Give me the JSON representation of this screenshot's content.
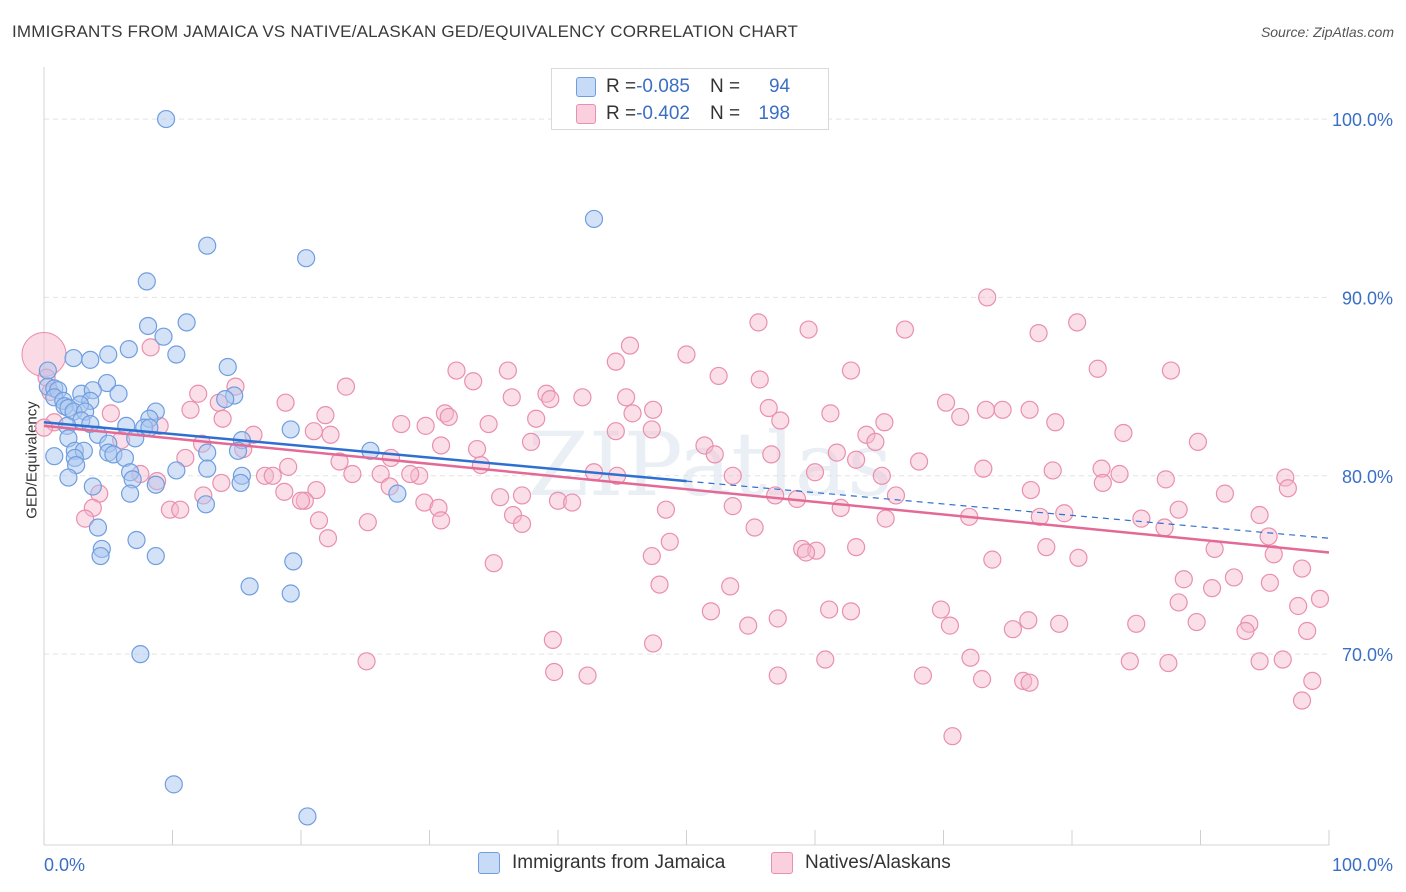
{
  "header": {
    "title": "IMMIGRANTS FROM JAMAICA VS NATIVE/ALASKAN GED/EQUIVALENCY CORRELATION CHART",
    "source": "Source: ZipAtlas.com"
  },
  "stats": [
    {
      "r_label": "R = ",
      "r_value": "-0.085",
      "n_label": "N = ",
      "n_value": "94"
    },
    {
      "r_label": "R = ",
      "r_value": "-0.402",
      "n_label": "N = ",
      "n_value": "198"
    }
  ],
  "colors": {
    "blue_fill": "#a9c6f0",
    "blue_stroke": "#6f9ee0",
    "blue_line": "#2f6fd0",
    "pink_fill": "#f5b8cc",
    "pink_stroke": "#ea8fae",
    "pink_line": "#e36a96",
    "value_text": "#3b6fc5",
    "grid": "#e3e3e3"
  },
  "chart_data": {
    "type": "scatter",
    "title": "IMMIGRANTS FROM JAMAICA VS NATIVE/ALASKAN GED/EQUIVALENCY CORRELATION CHART",
    "ylabel": "GED/Equivalency",
    "xlabel": "",
    "xlim": [
      0,
      100
    ],
    "ylim": [
      59.3,
      103.2
    ],
    "x_tick_labels": [
      "0.0%",
      "100.0%"
    ],
    "y_ticks": [
      70,
      80,
      90,
      100
    ],
    "y_tick_labels": [
      "70.0%",
      "80.0%",
      "90.0%",
      "100.0%"
    ],
    "grid": true,
    "legend_position": "bottom",
    "watermark": "ZIPatlas",
    "series": [
      {
        "name": "Immigrants from Jamaica",
        "color": "#a9c6f0",
        "trend": {
          "x": [
            0,
            50
          ],
          "y": [
            83.0,
            79.7
          ],
          "dashed_extension_to": [
            100,
            76.5
          ]
        },
        "points": [
          [
            9.5,
            100.0
          ],
          [
            42.8,
            94.4
          ],
          [
            12.7,
            92.9
          ],
          [
            20.4,
            92.2
          ],
          [
            8.0,
            90.9
          ],
          [
            11.1,
            88.6
          ],
          [
            8.1,
            88.4
          ],
          [
            9.3,
            87.8
          ],
          [
            6.6,
            87.1
          ],
          [
            10.3,
            86.8
          ],
          [
            2.3,
            86.6
          ],
          [
            3.6,
            86.5
          ],
          [
            5.0,
            86.8
          ],
          [
            14.3,
            86.1
          ],
          [
            0.3,
            85.9
          ],
          [
            4.9,
            85.2
          ],
          [
            0.3,
            85.0
          ],
          [
            0.8,
            84.9
          ],
          [
            1.1,
            84.8
          ],
          [
            2.9,
            84.6
          ],
          [
            3.8,
            84.8
          ],
          [
            5.8,
            84.6
          ],
          [
            14.8,
            84.5
          ],
          [
            0.8,
            84.4
          ],
          [
            1.5,
            84.2
          ],
          [
            3.6,
            84.2
          ],
          [
            14.1,
            84.3
          ],
          [
            2.8,
            84.0
          ],
          [
            1.6,
            83.9
          ],
          [
            1.9,
            83.8
          ],
          [
            2.3,
            83.6
          ],
          [
            3.2,
            83.6
          ],
          [
            8.7,
            83.6
          ],
          [
            2.9,
            83.1
          ],
          [
            8.2,
            83.2
          ],
          [
            1.8,
            82.8
          ],
          [
            3.6,
            82.9
          ],
          [
            6.4,
            82.8
          ],
          [
            7.8,
            82.7
          ],
          [
            8.2,
            82.7
          ],
          [
            19.2,
            82.6
          ],
          [
            4.2,
            82.3
          ],
          [
            7.1,
            82.1
          ],
          [
            15.4,
            82.0
          ],
          [
            1.9,
            82.1
          ],
          [
            5.0,
            81.8
          ],
          [
            2.4,
            81.4
          ],
          [
            3.1,
            81.4
          ],
          [
            5.0,
            81.3
          ],
          [
            5.4,
            81.2
          ],
          [
            12.7,
            81.3
          ],
          [
            15.1,
            81.4
          ],
          [
            25.4,
            81.4
          ],
          [
            0.8,
            81.1
          ],
          [
            2.4,
            81.0
          ],
          [
            6.3,
            81.0
          ],
          [
            2.5,
            80.6
          ],
          [
            10.3,
            80.3
          ],
          [
            12.7,
            80.4
          ],
          [
            6.7,
            80.2
          ],
          [
            15.4,
            80.0
          ],
          [
            1.9,
            79.9
          ],
          [
            6.9,
            79.8
          ],
          [
            15.3,
            79.6
          ],
          [
            8.7,
            79.5
          ],
          [
            3.8,
            79.4
          ],
          [
            6.7,
            79.0
          ],
          [
            27.5,
            79.0
          ],
          [
            12.6,
            78.4
          ],
          [
            4.2,
            77.1
          ],
          [
            7.2,
            76.4
          ],
          [
            4.5,
            75.9
          ],
          [
            4.4,
            75.5
          ],
          [
            8.7,
            75.5
          ],
          [
            19.4,
            75.2
          ],
          [
            16.0,
            73.8
          ],
          [
            19.2,
            73.4
          ],
          [
            7.5,
            70.0
          ],
          [
            10.1,
            62.7
          ],
          [
            20.5,
            60.9
          ]
        ]
      },
      {
        "name": "Natives/Alaskans",
        "color": "#f5b8cc",
        "trend": {
          "x": [
            0,
            100
          ],
          "y": [
            82.8,
            75.7
          ]
        },
        "points": [
          [
            73.4,
            90.0
          ],
          [
            55.6,
            88.6
          ],
          [
            80.4,
            88.6
          ],
          [
            59.5,
            88.2
          ],
          [
            67.0,
            88.2
          ],
          [
            77.4,
            88.0
          ],
          [
            45.6,
            87.3
          ],
          [
            8.3,
            87.2
          ],
          [
            50.0,
            86.8
          ],
          [
            44.5,
            86.4
          ],
          [
            32.1,
            85.9
          ],
          [
            36.1,
            85.9
          ],
          [
            62.8,
            85.9
          ],
          [
            82.0,
            86.0
          ],
          [
            87.7,
            85.9
          ],
          [
            52.5,
            85.6
          ],
          [
            55.7,
            85.4
          ],
          [
            14.9,
            85.0
          ],
          [
            33.4,
            85.3
          ],
          [
            0.8,
            83.0
          ],
          [
            23.5,
            85.0
          ],
          [
            39.1,
            84.6
          ],
          [
            41.9,
            84.4
          ],
          [
            36.4,
            84.4
          ],
          [
            45.3,
            84.4
          ],
          [
            39.4,
            84.3
          ],
          [
            13.6,
            84.1
          ],
          [
            18.8,
            84.1
          ],
          [
            11.4,
            83.7
          ],
          [
            31.2,
            83.5
          ],
          [
            38.3,
            83.2
          ],
          [
            47.4,
            83.7
          ],
          [
            45.8,
            83.5
          ],
          [
            56.4,
            83.8
          ],
          [
            61.2,
            83.5
          ],
          [
            76.7,
            83.7
          ],
          [
            70.2,
            84.1
          ],
          [
            73.3,
            83.7
          ],
          [
            74.6,
            83.7
          ],
          [
            21.9,
            83.4
          ],
          [
            13.9,
            83.2
          ],
          [
            31.5,
            83.3
          ],
          [
            27.8,
            82.9
          ],
          [
            34.6,
            82.9
          ],
          [
            29.7,
            82.8
          ],
          [
            57.3,
            83.1
          ],
          [
            65.4,
            83.0
          ],
          [
            71.3,
            83.3
          ],
          [
            78.7,
            83.0
          ],
          [
            84.0,
            82.4
          ],
          [
            64.0,
            82.3
          ],
          [
            47.3,
            82.6
          ],
          [
            44.5,
            82.5
          ],
          [
            16.3,
            82.3
          ],
          [
            22.3,
            82.3
          ],
          [
            12.3,
            81.8
          ],
          [
            37.9,
            81.9
          ],
          [
            51.4,
            81.7
          ],
          [
            64.7,
            81.9
          ],
          [
            30.9,
            81.7
          ],
          [
            33.7,
            81.5
          ],
          [
            52.2,
            81.2
          ],
          [
            56.6,
            81.2
          ],
          [
            61.7,
            81.3
          ],
          [
            63.2,
            80.9
          ],
          [
            68.1,
            80.8
          ],
          [
            73.1,
            80.4
          ],
          [
            78.5,
            80.3
          ],
          [
            82.3,
            80.4
          ],
          [
            89.8,
            81.9
          ],
          [
            42.8,
            80.2
          ],
          [
            24.0,
            80.1
          ],
          [
            17.2,
            80.0
          ],
          [
            26.2,
            80.1
          ],
          [
            29.2,
            80.0
          ],
          [
            17.8,
            80.0
          ],
          [
            44.6,
            80.0
          ],
          [
            53.6,
            80.0
          ],
          [
            60.0,
            80.2
          ],
          [
            65.2,
            80.0
          ],
          [
            83.7,
            80.1
          ],
          [
            87.3,
            79.8
          ],
          [
            96.6,
            79.9
          ],
          [
            13.8,
            79.6
          ],
          [
            8.8,
            79.7
          ],
          [
            26.9,
            79.4
          ],
          [
            18.7,
            79.1
          ],
          [
            21.2,
            79.2
          ],
          [
            12.4,
            78.9
          ],
          [
            35.5,
            78.8
          ],
          [
            37.2,
            78.9
          ],
          [
            40.0,
            78.6
          ],
          [
            56.9,
            78.9
          ],
          [
            58.6,
            78.7
          ],
          [
            66.3,
            78.9
          ],
          [
            76.8,
            79.2
          ],
          [
            82.4,
            79.6
          ],
          [
            91.9,
            79.0
          ],
          [
            96.8,
            79.3
          ],
          [
            4.3,
            79.0
          ],
          [
            3.8,
            78.2
          ],
          [
            9.8,
            78.1
          ],
          [
            10.6,
            78.1
          ],
          [
            20.3,
            78.6
          ],
          [
            29.6,
            78.5
          ],
          [
            30.7,
            78.2
          ],
          [
            36.5,
            77.8
          ],
          [
            41.1,
            78.5
          ],
          [
            48.4,
            78.1
          ],
          [
            53.6,
            78.3
          ],
          [
            62.0,
            78.2
          ],
          [
            77.5,
            77.7
          ],
          [
            79.4,
            77.9
          ],
          [
            85.4,
            77.6
          ],
          [
            88.3,
            78.1
          ],
          [
            94.6,
            77.8
          ],
          [
            3.2,
            77.6
          ],
          [
            21.4,
            77.5
          ],
          [
            25.2,
            77.4
          ],
          [
            30.9,
            77.5
          ],
          [
            37.2,
            77.3
          ],
          [
            55.3,
            77.1
          ],
          [
            65.5,
            77.6
          ],
          [
            72.0,
            77.7
          ],
          [
            87.2,
            77.1
          ],
          [
            95.3,
            76.6
          ],
          [
            22.1,
            76.5
          ],
          [
            48.7,
            76.3
          ],
          [
            59.0,
            75.9
          ],
          [
            60.1,
            75.8
          ],
          [
            63.2,
            76.0
          ],
          [
            78.0,
            76.0
          ],
          [
            91.1,
            75.9
          ],
          [
            35.0,
            75.1
          ],
          [
            47.3,
            75.5
          ],
          [
            59.3,
            75.7
          ],
          [
            73.8,
            75.3
          ],
          [
            80.5,
            75.4
          ],
          [
            95.7,
            75.6
          ],
          [
            88.7,
            74.2
          ],
          [
            92.6,
            74.3
          ],
          [
            95.4,
            74.0
          ],
          [
            97.9,
            74.8
          ],
          [
            47.9,
            73.9
          ],
          [
            53.4,
            73.8
          ],
          [
            88.3,
            72.9
          ],
          [
            90.9,
            73.7
          ],
          [
            99.3,
            73.1
          ],
          [
            97.6,
            72.7
          ],
          [
            61.1,
            72.5
          ],
          [
            62.8,
            72.4
          ],
          [
            69.8,
            72.5
          ],
          [
            51.9,
            72.4
          ],
          [
            57.1,
            72.0
          ],
          [
            76.6,
            71.9
          ],
          [
            79.0,
            71.7
          ],
          [
            85.0,
            71.7
          ],
          [
            89.7,
            71.8
          ],
          [
            93.8,
            71.7
          ],
          [
            98.3,
            71.3
          ],
          [
            47.4,
            70.6
          ],
          [
            54.8,
            71.6
          ],
          [
            70.5,
            71.6
          ],
          [
            75.4,
            71.4
          ],
          [
            93.5,
            71.3
          ],
          [
            39.6,
            70.8
          ],
          [
            60.8,
            69.7
          ],
          [
            72.1,
            69.8
          ],
          [
            84.5,
            69.6
          ],
          [
            87.5,
            69.5
          ],
          [
            94.6,
            69.6
          ],
          [
            96.4,
            69.7
          ],
          [
            25.1,
            69.6
          ],
          [
            39.7,
            69.0
          ],
          [
            42.3,
            68.8
          ],
          [
            57.1,
            68.8
          ],
          [
            68.4,
            68.8
          ],
          [
            73.0,
            68.6
          ],
          [
            76.2,
            68.5
          ],
          [
            76.7,
            68.4
          ],
          [
            97.9,
            67.4
          ],
          [
            70.7,
            65.4
          ],
          [
            98.7,
            68.5
          ],
          [
            0.2,
            85.5
          ],
          [
            5.2,
            83.5
          ],
          [
            6.0,
            82.0
          ],
          [
            7.5,
            80.1
          ],
          [
            9.0,
            82.8
          ],
          [
            11.0,
            81.0
          ],
          [
            12.0,
            84.6
          ],
          [
            15.5,
            81.5
          ],
          [
            19.0,
            80.5
          ],
          [
            20.0,
            78.6
          ],
          [
            21.0,
            82.5
          ],
          [
            23.0,
            80.8
          ],
          [
            27.0,
            81.0
          ],
          [
            28.5,
            80.1
          ],
          [
            34.0,
            80.6
          ],
          [
            0.0,
            82.7
          ],
          [
            0.5,
            84.7
          ]
        ]
      }
    ]
  },
  "legend": {
    "items": [
      "Immigrants from Jamaica",
      "Natives/Alaskans"
    ]
  }
}
